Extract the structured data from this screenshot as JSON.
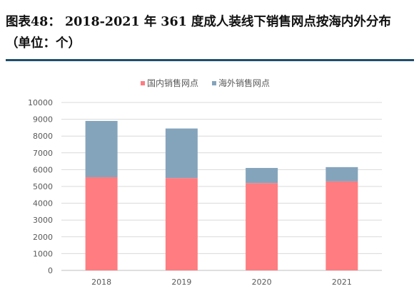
{
  "title": "图表48：   2018-2021 年 361 度成人装线下销售网点按海内外分布（单位：个）",
  "chart_data": {
    "type": "bar",
    "stacked": true,
    "categories": [
      "2018",
      "2019",
      "2020",
      "2021"
    ],
    "series": [
      {
        "name": "国内销售网点",
        "color": "#ff7c80",
        "values": [
          5550,
          5500,
          5200,
          5300
        ]
      },
      {
        "name": "海外销售网点",
        "color": "#84a4bc",
        "values": [
          3350,
          2950,
          900,
          850
        ]
      }
    ],
    "ylim": [
      0,
      10000
    ],
    "yticks": [
      0,
      1000,
      2000,
      3000,
      4000,
      5000,
      6000,
      7000,
      8000,
      9000,
      10000
    ],
    "grid": true,
    "legend": "top-center"
  }
}
